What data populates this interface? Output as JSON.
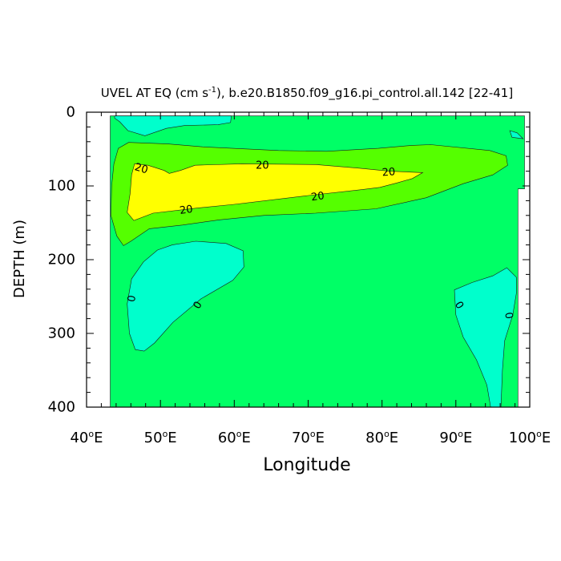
{
  "chart_data": {
    "type": "contour",
    "title_main": "UVEL AT EQ (cm s",
    "title_sup": "-1",
    "title_rest": "), b.e20.B1850.f09_g16.pi_control.all.142 [22-41]",
    "xlabel": "Longitude",
    "ylabel": "DEPTH (m)",
    "xlim": [
      40,
      100
    ],
    "ylim": [
      0,
      400
    ],
    "y_reversed": true,
    "x_ticks": [
      {
        "value": 40,
        "label": "40",
        "suffix": "E"
      },
      {
        "value": 50,
        "label": "50",
        "suffix": "E"
      },
      {
        "value": 60,
        "label": "60",
        "suffix": "E"
      },
      {
        "value": 70,
        "label": "70",
        "suffix": "E"
      },
      {
        "value": 80,
        "label": "80",
        "suffix": "E"
      },
      {
        "value": 90,
        "label": "90",
        "suffix": "E"
      },
      {
        "value": 100,
        "label": "100",
        "suffix": "E"
      }
    ],
    "y_ticks": [
      {
        "value": 0,
        "label": "0"
      },
      {
        "value": 100,
        "label": "100"
      },
      {
        "value": 200,
        "label": "200"
      },
      {
        "value": 300,
        "label": "300"
      },
      {
        "value": 400,
        "label": "400"
      }
    ],
    "colors": {
      "band_0_10": "#55ff00",
      "band_neg": "#00ffcc",
      "band_10_20": "#55ff00",
      "band_20_30": "#ffff00",
      "band_0_to_10_main": "#00ff66"
    },
    "regions": [
      {
        "name": "ocean-domain",
        "level": "0 to 10",
        "color": "#00ff66",
        "points": [
          [
            43.2,
            5
          ],
          [
            99.3,
            5
          ],
          [
            99.3,
            104
          ],
          [
            98.4,
            104
          ],
          [
            98.4,
            400
          ],
          [
            43.2,
            400
          ]
        ]
      },
      {
        "name": "negative-surface-patch",
        "level": "-10 to 0",
        "color": "#00ffcc",
        "points": [
          [
            43.8,
            5
          ],
          [
            59.6,
            5
          ],
          [
            59.5,
            14
          ],
          [
            57.8,
            17
          ],
          [
            53.3,
            18
          ],
          [
            50.8,
            22
          ],
          [
            47.9,
            32
          ],
          [
            45.6,
            25
          ],
          [
            44.5,
            13
          ],
          [
            43.8,
            8
          ]
        ]
      },
      {
        "name": "negative-deep-west",
        "level": "-10 to 0",
        "color": "#00ffcc",
        "points": [
          [
            49.6,
            187
          ],
          [
            51.6,
            180
          ],
          [
            54.8,
            175
          ],
          [
            58.9,
            178
          ],
          [
            61.2,
            188
          ],
          [
            61.3,
            210
          ],
          [
            59.8,
            228
          ],
          [
            55.5,
            253
          ],
          [
            51.7,
            285
          ],
          [
            49.2,
            313
          ],
          [
            47.8,
            324
          ],
          [
            46.6,
            322
          ],
          [
            45.8,
            300
          ],
          [
            45.5,
            260
          ],
          [
            46.1,
            226
          ],
          [
            47.7,
            203
          ]
        ]
      },
      {
        "name": "negative-deep-east",
        "level": "-10 to 0",
        "color": "#00ffcc",
        "points": [
          [
            89.8,
            241
          ],
          [
            92.2,
            231
          ],
          [
            95.0,
            222
          ],
          [
            96.9,
            211
          ],
          [
            98.2,
            224
          ],
          [
            98.2,
            245
          ],
          [
            97.7,
            275
          ],
          [
            96.6,
            310
          ],
          [
            96.3,
            350
          ],
          [
            96.1,
            400
          ],
          [
            94.7,
            400
          ],
          [
            94.2,
            370
          ],
          [
            92.8,
            336
          ],
          [
            91.0,
            305
          ],
          [
            90.0,
            275
          ]
        ]
      },
      {
        "name": "negative-east-corner",
        "level": "-10 to 0",
        "color": "#00ffcc",
        "points": [
          [
            97.3,
            25
          ],
          [
            98.3,
            28
          ],
          [
            99.1,
            36
          ],
          [
            97.6,
            34
          ]
        ]
      },
      {
        "name": "jet-10-20",
        "level": "10 to 20",
        "color": "#55ff00",
        "points": [
          [
            44.3,
            49
          ],
          [
            45.7,
            41
          ],
          [
            51,
            43
          ],
          [
            55.7,
            47
          ],
          [
            66,
            52
          ],
          [
            72.5,
            53
          ],
          [
            79.5,
            49
          ],
          [
            84,
            45
          ],
          [
            86.6,
            44
          ],
          [
            94.6,
            52
          ],
          [
            96.8,
            59
          ],
          [
            97,
            72
          ],
          [
            95,
            85
          ],
          [
            91,
            97
          ],
          [
            86,
            116
          ],
          [
            79.2,
            131
          ],
          [
            71,
            137
          ],
          [
            64,
            140
          ],
          [
            58,
            146
          ],
          [
            53,
            153
          ],
          [
            48.5,
            158
          ],
          [
            46,
            175
          ],
          [
            45,
            181
          ],
          [
            44.1,
            168
          ],
          [
            43.3,
            140
          ],
          [
            43.4,
            100
          ],
          [
            43.7,
            70
          ]
        ]
      },
      {
        "name": "jet-20-30",
        "level": "20 to 30",
        "color": "#ffff00",
        "points": [
          [
            46.5,
            70
          ],
          [
            48.3,
            72
          ],
          [
            50.5,
            79
          ],
          [
            51.2,
            83
          ],
          [
            52.7,
            79
          ],
          [
            54.7,
            72
          ],
          [
            61,
            70
          ],
          [
            71,
            71
          ],
          [
            77,
            76
          ],
          [
            81,
            80
          ],
          [
            85.5,
            82
          ],
          [
            84.1,
            90
          ],
          [
            82,
            96
          ],
          [
            79.7,
            102
          ],
          [
            77.3,
            105
          ],
          [
            70,
            113
          ],
          [
            60,
            125
          ],
          [
            55,
            130
          ],
          [
            49,
            137
          ],
          [
            46.4,
            147
          ],
          [
            45.5,
            136
          ],
          [
            45.9,
            110
          ],
          [
            46.1,
            85
          ]
        ]
      }
    ],
    "contour_labels": [
      {
        "text": "20",
        "x": 47.4,
        "y": 77,
        "rotate": 16
      },
      {
        "text": "20",
        "x": 63.8,
        "y": 73,
        "rotate": 0
      },
      {
        "text": "20",
        "x": 80.9,
        "y": 82,
        "rotate": -4
      },
      {
        "text": "20",
        "x": 71.3,
        "y": 115,
        "rotate": -8
      },
      {
        "text": "20",
        "x": 53.5,
        "y": 133,
        "rotate": -8
      },
      {
        "text": "0",
        "x": 46.2,
        "y": 253,
        "rotate": -80
      },
      {
        "text": "0",
        "x": 55.1,
        "y": 262,
        "rotate": -60
      },
      {
        "text": "0",
        "x": 90.4,
        "y": 262,
        "rotate": 60
      },
      {
        "text": "0",
        "x": 97.1,
        "y": 276,
        "rotate": 80
      }
    ]
  }
}
